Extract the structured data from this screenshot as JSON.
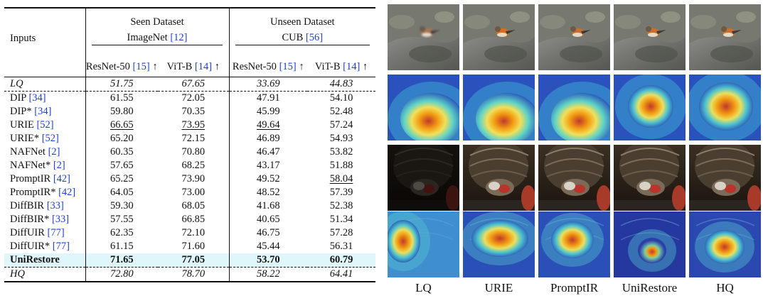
{
  "table": {
    "header": {
      "inputs": "Inputs",
      "seen_line1": "Seen Dataset",
      "seen_line2": "ImageNet",
      "seen_cite": "[12]",
      "unseen_line1": "Unseen Dataset",
      "unseen_line2": "CUB",
      "unseen_cite": "[56]",
      "cols": [
        {
          "name": "ResNet-50",
          "cite": "[15]",
          "arrow": "↑"
        },
        {
          "name": "ViT-B",
          "cite": "[14]",
          "arrow": "↑"
        },
        {
          "name": "ResNet-50",
          "cite": "[15]",
          "arrow": "↑"
        },
        {
          "name": "ViT-B",
          "cite": "[14]",
          "arrow": "↑"
        }
      ]
    },
    "rows": [
      {
        "name": "LQ",
        "cite": "",
        "v": [
          "51.75",
          "67.65",
          "33.69",
          "44.83"
        ]
      },
      {
        "name": "DIP",
        "cite": "[34]",
        "v": [
          "61.55",
          "72.05",
          "47.91",
          "54.10"
        ]
      },
      {
        "name": "DIP*",
        "cite": "[34]",
        "v": [
          "59.80",
          "70.35",
          "45.99",
          "52.48"
        ]
      },
      {
        "name": "URIE",
        "cite": "[52]",
        "v": [
          "66.65",
          "73.95",
          "49.64",
          "57.24"
        ]
      },
      {
        "name": "URIE*",
        "cite": "[52]",
        "v": [
          "65.20",
          "72.15",
          "46.89",
          "54.93"
        ]
      },
      {
        "name": "NAFNet",
        "cite": "[2]",
        "v": [
          "60.35",
          "70.80",
          "46.47",
          "53.82"
        ]
      },
      {
        "name": "NAFNet*",
        "cite": "[2]",
        "v": [
          "57.65",
          "68.25",
          "43.17",
          "51.88"
        ]
      },
      {
        "name": "PromptIR",
        "cite": "[42]",
        "v": [
          "65.25",
          "73.90",
          "49.52",
          "58.04"
        ]
      },
      {
        "name": "PromptIR*",
        "cite": "[42]",
        "v": [
          "64.05",
          "73.00",
          "48.52",
          "57.39"
        ]
      },
      {
        "name": "DiffBIR",
        "cite": "[33]",
        "v": [
          "59.30",
          "68.05",
          "41.68",
          "52.38"
        ]
      },
      {
        "name": "DiffBIR*",
        "cite": "[33]",
        "v": [
          "57.55",
          "66.85",
          "40.65",
          "51.34"
        ]
      },
      {
        "name": "DiffUIR",
        "cite": "[77]",
        "v": [
          "62.35",
          "72.10",
          "46.75",
          "57.28"
        ]
      },
      {
        "name": "DiffUIR*",
        "cite": "[77]",
        "v": [
          "61.15",
          "71.60",
          "45.44",
          "56.31"
        ]
      },
      {
        "name": "UniRestore",
        "cite": "",
        "v": [
          "71.65",
          "77.05",
          "53.70",
          "60.79"
        ]
      },
      {
        "name": "HQ",
        "cite": "",
        "v": [
          "72.80",
          "78.70",
          "58.22",
          "64.41"
        ]
      }
    ]
  },
  "figure": {
    "columns": [
      "LQ",
      "URIE",
      "PromptIR",
      "UniRestore",
      "HQ"
    ]
  }
}
